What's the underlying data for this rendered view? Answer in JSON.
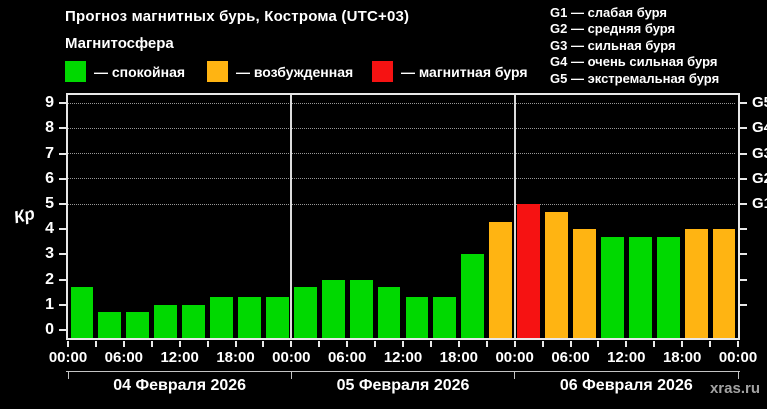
{
  "header": {
    "title": "Прогноз магнитных бурь, Кострома (UTC+03)",
    "subtitle": "Магнитосфера",
    "legend": [
      {
        "label": "— спокойная",
        "color": "#00d900",
        "key": "green"
      },
      {
        "label": "— возбужденная",
        "color": "#ffb412",
        "key": "orange"
      },
      {
        "label": "— магнитная буря",
        "color": "#f61212",
        "key": "red"
      }
    ],
    "g_scale": [
      "G1 — слабая буря",
      "G2 — средняя буря",
      "G3 — сильная буря",
      "G4 — очень сильная буря",
      "G5 — экстремальная буря"
    ]
  },
  "chart_data": {
    "type": "bar",
    "title": "Прогноз магнитных бурь, Кострома (UTC+03)",
    "ylabel": "Кр",
    "ylim": [
      0,
      9
    ],
    "yticks": [
      0,
      1,
      2,
      3,
      4,
      5,
      6,
      7,
      8,
      9
    ],
    "gridlines_at": [
      5,
      6,
      7,
      8,
      9
    ],
    "grid": "dotted horizontal at G-levels only",
    "bar_interval_hours": 3,
    "x_time_labels": [
      "00:00",
      "06:00",
      "12:00",
      "18:00",
      "00:00",
      "06:00",
      "12:00",
      "18:00",
      "00:00",
      "06:00",
      "12:00",
      "18:00",
      "00:00"
    ],
    "right_axis": [
      {
        "label": "G1",
        "kp": 5
      },
      {
        "label": "G2",
        "kp": 6
      },
      {
        "label": "G3",
        "kp": 7
      },
      {
        "label": "G4",
        "kp": 8
      },
      {
        "label": "G5",
        "kp": 9
      }
    ],
    "colors": {
      "green": "#00d900",
      "orange": "#ffb412",
      "red": "#f61212"
    },
    "days": [
      {
        "date": "04 Февраля 2026",
        "values": [
          1.7,
          0.7,
          0.7,
          1.0,
          1.0,
          1.3,
          1.3,
          1.3
        ],
        "colors": [
          "green",
          "green",
          "green",
          "green",
          "green",
          "green",
          "green",
          "green"
        ]
      },
      {
        "date": "05 Февраля 2026",
        "values": [
          1.7,
          2.0,
          2.0,
          1.7,
          1.3,
          1.3,
          3.0,
          4.3
        ],
        "colors": [
          "green",
          "green",
          "green",
          "green",
          "green",
          "green",
          "green",
          "orange"
        ]
      },
      {
        "date": "06 Февраля 2026",
        "values": [
          5.0,
          4.7,
          4.0,
          3.7,
          3.7,
          3.7,
          4.0,
          4.0
        ],
        "colors": [
          "red",
          "orange",
          "orange",
          "green",
          "green",
          "green",
          "orange",
          "orange"
        ]
      }
    ]
  },
  "watermark": "xras.ru"
}
